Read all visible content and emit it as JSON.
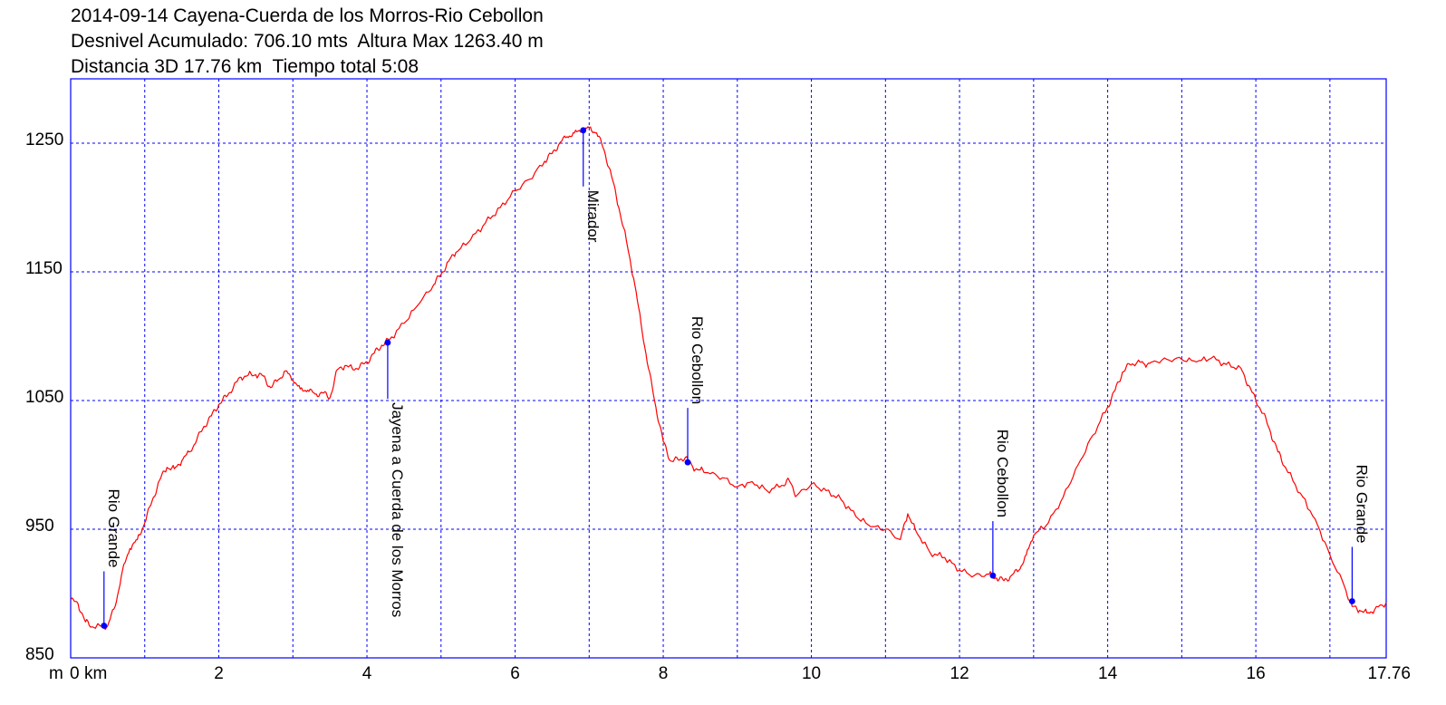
{
  "header": {
    "line1": "2014-09-14 Cayena-Cuerda de los Morros-Rio Cebollon",
    "line2": "Desnivel Acumulado: 706.10 mts  Altura Max 1263.40 m",
    "line3": "Distancia 3D 17.76 km  Tiempo total 5:08"
  },
  "chart_data": {
    "type": "line",
    "title": "",
    "xlabel": "",
    "ylabel": "",
    "x_unit_label": "km",
    "y_unit_label": "m",
    "xlim": [
      0,
      17.76
    ],
    "ylim": [
      850,
      1300
    ],
    "grid": true,
    "x_ticks": [
      0,
      2,
      4,
      6,
      8,
      10,
      12,
      14,
      16,
      17.76
    ],
    "x_tick_labels": [
      "0",
      "2",
      "4",
      "6",
      "8",
      "10",
      "12",
      "14",
      "16",
      "17.76"
    ],
    "x_gridlines": [
      1,
      2,
      3,
      4,
      5,
      6,
      7,
      8,
      9,
      10,
      11,
      12,
      13,
      14,
      15,
      16,
      17
    ],
    "y_ticks": [
      850,
      950,
      1050,
      1150,
      1250
    ],
    "y_tick_labels": [
      "850",
      "950",
      "1050",
      "1150",
      "1250"
    ],
    "colors": {
      "line": "#ff0000",
      "frame": "#0000ff",
      "grid": "#0000ff",
      "waypoint": "#0000ff"
    },
    "series": [
      {
        "x": [
          0,
          0.1,
          0.2,
          0.3,
          0.5,
          0.6,
          0.7,
          0.8,
          0.9,
          1.0,
          1.1,
          1.2,
          1.3,
          1.4,
          1.5,
          1.6,
          1.7,
          1.8,
          1.9,
          2.0,
          2.1,
          2.2,
          2.3,
          2.4,
          2.5,
          2.6,
          2.7,
          2.8,
          2.9,
          3.0,
          3.1,
          3.2,
          3.3,
          3.4,
          3.5,
          3.6,
          3.7,
          3.8,
          3.9,
          4.0,
          4.1,
          4.2,
          4.3,
          4.5,
          4.7,
          4.9,
          5.0,
          5.1,
          5.2,
          5.4,
          5.6,
          5.8,
          6.0,
          6.2,
          6.4,
          6.5,
          6.6,
          6.7,
          6.8,
          6.9,
          7.0,
          7.1,
          7.2,
          7.3,
          7.4,
          7.5,
          7.6,
          7.7,
          7.8,
          7.9,
          8.0,
          8.1,
          8.2,
          8.3,
          8.4,
          8.5,
          8.6,
          8.8,
          9.0,
          9.2,
          9.4,
          9.6,
          9.7,
          9.8,
          10.0,
          10.2,
          10.4,
          10.6,
          10.8,
          11.0,
          11.2,
          11.3,
          11.4,
          11.6,
          11.8,
          12.0,
          12.2,
          12.4,
          12.5,
          12.6,
          12.7,
          12.8,
          12.9,
          13.0,
          13.2,
          13.4,
          13.6,
          13.8,
          14.0,
          14.1,
          14.2,
          14.3,
          14.4,
          14.5,
          14.6,
          14.8,
          15.0,
          15.2,
          15.4,
          15.6,
          15.8,
          15.9,
          16.0,
          16.1,
          16.2,
          16.3,
          16.4,
          16.6,
          16.8,
          17.0,
          17.2,
          17.3,
          17.4,
          17.5,
          17.6,
          17.76
        ],
        "y": [
          895,
          892,
          878,
          874,
          875,
          890,
          918,
          935,
          942,
          955,
          972,
          988,
          998,
          997,
          1003,
          1010,
          1019,
          1030,
          1038,
          1047,
          1053,
          1061,
          1068,
          1070,
          1070,
          1069,
          1060,
          1066,
          1073,
          1066,
          1059,
          1058,
          1055,
          1056,
          1052,
          1074,
          1077,
          1075,
          1076,
          1080,
          1087,
          1093,
          1097,
          1110,
          1125,
          1140,
          1148,
          1158,
          1165,
          1175,
          1188,
          1200,
          1213,
          1222,
          1236,
          1242,
          1250,
          1255,
          1258,
          1260,
          1262,
          1258,
          1245,
          1225,
          1200,
          1175,
          1145,
          1110,
          1075,
          1045,
          1018,
          1003,
          1004,
          1006,
          998,
          996,
          994,
          990,
          983,
          987,
          980,
          984,
          988,
          976,
          985,
          980,
          973,
          960,
          952,
          950,
          942,
          962,
          950,
          932,
          928,
          918,
          914,
          915,
          912,
          910,
          914,
          918,
          930,
          945,
          955,
          975,
          1000,
          1023,
          1045,
          1058,
          1072,
          1078,
          1080,
          1078,
          1080,
          1082,
          1082,
          1080,
          1083,
          1078,
          1075,
          1062,
          1050,
          1040,
          1025,
          1010,
          998,
          978,
          958,
          930,
          905,
          890,
          887,
          885,
          887,
          893
        ]
      }
    ],
    "waypoints": [
      {
        "name": "Rio Grande",
        "x": 0.45,
        "y": 875
      },
      {
        "name": "Jayena a Cuerda de los Morros",
        "x": 4.28,
        "y": 1095
      },
      {
        "name": "Mirador",
        "x": 6.92,
        "y": 1260
      },
      {
        "name": "Rio Cebollon",
        "x": 8.33,
        "y": 1002
      },
      {
        "name": "Rio Cebollon",
        "x": 12.45,
        "y": 914
      },
      {
        "name": "Rio Grande",
        "x": 17.3,
        "y": 894
      }
    ]
  }
}
